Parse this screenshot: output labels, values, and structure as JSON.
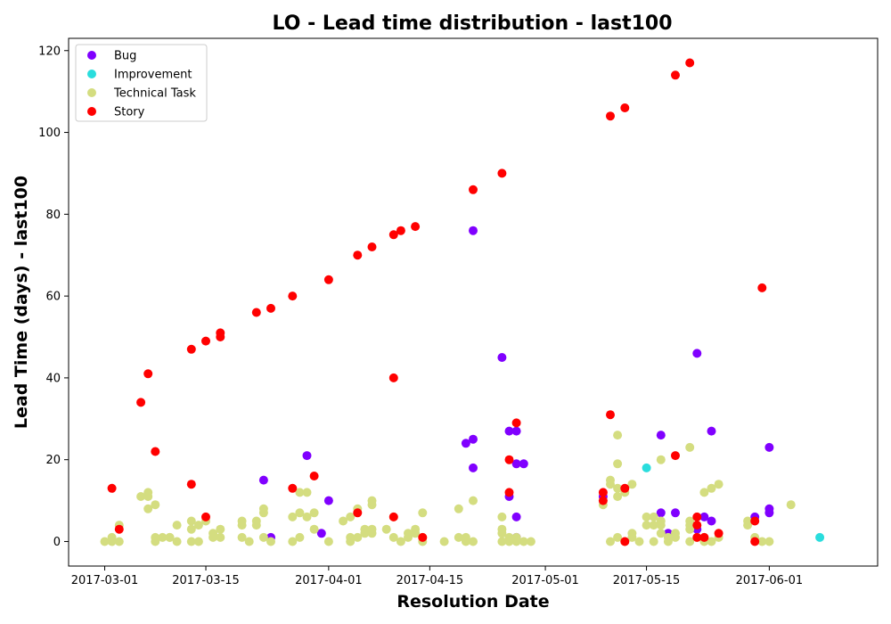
{
  "chart_data": {
    "type": "scatter",
    "title": "LO - Lead time distribution - last100",
    "xlabel": "Resolution Date",
    "ylabel": "Lead Time (days) - last100",
    "x_type": "date",
    "xlim": [
      "2017-02-24",
      "2017-06-16"
    ],
    "ylim": [
      -6,
      123
    ],
    "x_ticks": [
      "2017-03-01",
      "2017-03-15",
      "2017-04-01",
      "2017-04-15",
      "2017-05-01",
      "2017-05-15",
      "2017-06-01"
    ],
    "y_ticks": [
      0,
      20,
      40,
      60,
      80,
      100,
      120
    ],
    "grid": false,
    "legend_position": "top-left",
    "series": [
      {
        "name": "Bug",
        "color": "#8000ff",
        "points": [
          [
            "2017-03-23",
            15
          ],
          [
            "2017-03-24",
            1
          ],
          [
            "2017-03-29",
            21
          ],
          [
            "2017-03-31",
            2
          ],
          [
            "2017-04-01",
            10
          ],
          [
            "2017-04-20",
            24
          ],
          [
            "2017-04-21",
            76
          ],
          [
            "2017-04-21",
            25
          ],
          [
            "2017-04-21",
            18
          ],
          [
            "2017-04-25",
            45
          ],
          [
            "2017-04-26",
            11
          ],
          [
            "2017-04-26",
            27
          ],
          [
            "2017-04-27",
            27
          ],
          [
            "2017-04-27",
            19
          ],
          [
            "2017-04-27",
            6
          ],
          [
            "2017-04-27",
            1
          ],
          [
            "2017-04-28",
            19
          ],
          [
            "2017-05-09",
            11
          ],
          [
            "2017-05-17",
            26
          ],
          [
            "2017-05-17",
            7
          ],
          [
            "2017-05-18",
            2
          ],
          [
            "2017-05-19",
            7
          ],
          [
            "2017-05-22",
            46
          ],
          [
            "2017-05-22",
            3
          ],
          [
            "2017-05-23",
            6
          ],
          [
            "2017-05-24",
            27
          ],
          [
            "2017-05-24",
            5
          ],
          [
            "2017-05-30",
            6
          ],
          [
            "2017-06-01",
            23
          ],
          [
            "2017-06-01",
            8
          ],
          [
            "2017-06-01",
            7
          ]
        ]
      },
      {
        "name": "Improvement",
        "color": "#2adddd",
        "points": [
          [
            "2017-05-15",
            18
          ],
          [
            "2017-06-08",
            1
          ]
        ]
      },
      {
        "name": "Technical Task",
        "color": "#d4dd80",
        "points": [
          [
            "2017-03-01",
            0
          ],
          [
            "2017-03-02",
            1
          ],
          [
            "2017-03-02",
            0
          ],
          [
            "2017-03-03",
            0
          ],
          [
            "2017-03-03",
            4
          ],
          [
            "2017-03-06",
            11
          ],
          [
            "2017-03-07",
            12
          ],
          [
            "2017-03-07",
            11
          ],
          [
            "2017-03-07",
            8
          ],
          [
            "2017-03-08",
            9
          ],
          [
            "2017-03-08",
            1
          ],
          [
            "2017-03-08",
            0
          ],
          [
            "2017-03-09",
            1
          ],
          [
            "2017-03-10",
            1
          ],
          [
            "2017-03-10",
            1
          ],
          [
            "2017-03-11",
            4
          ],
          [
            "2017-03-11",
            0
          ],
          [
            "2017-03-13",
            5
          ],
          [
            "2017-03-13",
            3
          ],
          [
            "2017-03-13",
            0
          ],
          [
            "2017-03-14",
            4
          ],
          [
            "2017-03-14",
            0
          ],
          [
            "2017-03-15",
            5
          ],
          [
            "2017-03-16",
            2
          ],
          [
            "2017-03-16",
            1
          ],
          [
            "2017-03-17",
            3
          ],
          [
            "2017-03-17",
            1
          ],
          [
            "2017-03-20",
            5
          ],
          [
            "2017-03-20",
            4
          ],
          [
            "2017-03-20",
            1
          ],
          [
            "2017-03-21",
            0
          ],
          [
            "2017-03-22",
            5
          ],
          [
            "2017-03-22",
            4
          ],
          [
            "2017-03-23",
            1
          ],
          [
            "2017-03-23",
            8
          ],
          [
            "2017-03-23",
            7
          ],
          [
            "2017-03-24",
            0
          ],
          [
            "2017-03-27",
            6
          ],
          [
            "2017-03-27",
            0
          ],
          [
            "2017-03-28",
            12
          ],
          [
            "2017-03-28",
            7
          ],
          [
            "2017-03-28",
            1
          ],
          [
            "2017-03-29",
            12
          ],
          [
            "2017-03-29",
            6
          ],
          [
            "2017-03-30",
            7
          ],
          [
            "2017-03-30",
            3
          ],
          [
            "2017-04-01",
            0
          ],
          [
            "2017-04-03",
            5
          ],
          [
            "2017-04-04",
            6
          ],
          [
            "2017-04-04",
            1
          ],
          [
            "2017-04-04",
            0
          ],
          [
            "2017-04-05",
            8
          ],
          [
            "2017-04-05",
            1
          ],
          [
            "2017-04-06",
            3
          ],
          [
            "2017-04-06",
            2
          ],
          [
            "2017-04-07",
            10
          ],
          [
            "2017-04-07",
            9
          ],
          [
            "2017-04-07",
            3
          ],
          [
            "2017-04-07",
            2
          ],
          [
            "2017-04-09",
            3
          ],
          [
            "2017-04-10",
            6
          ],
          [
            "2017-04-10",
            1
          ],
          [
            "2017-04-11",
            0
          ],
          [
            "2017-04-12",
            2
          ],
          [
            "2017-04-12",
            1
          ],
          [
            "2017-04-13",
            3
          ],
          [
            "2017-04-13",
            2
          ],
          [
            "2017-04-14",
            7
          ],
          [
            "2017-04-14",
            1
          ],
          [
            "2017-04-14",
            0
          ],
          [
            "2017-04-17",
            0
          ],
          [
            "2017-04-19",
            8
          ],
          [
            "2017-04-19",
            1
          ],
          [
            "2017-04-20",
            1
          ],
          [
            "2017-04-20",
            0
          ],
          [
            "2017-04-21",
            10
          ],
          [
            "2017-04-21",
            0
          ],
          [
            "2017-04-25",
            6
          ],
          [
            "2017-04-25",
            3
          ],
          [
            "2017-04-25",
            2
          ],
          [
            "2017-04-25",
            0
          ],
          [
            "2017-04-26",
            1
          ],
          [
            "2017-04-26",
            0
          ],
          [
            "2017-04-27",
            1
          ],
          [
            "2017-04-27",
            0
          ],
          [
            "2017-04-28",
            0
          ],
          [
            "2017-04-29",
            0
          ],
          [
            "2017-05-09",
            9
          ],
          [
            "2017-05-10",
            15
          ],
          [
            "2017-05-10",
            14
          ],
          [
            "2017-05-10",
            0
          ],
          [
            "2017-05-11",
            26
          ],
          [
            "2017-05-11",
            19
          ],
          [
            "2017-05-11",
            13
          ],
          [
            "2017-05-11",
            11
          ],
          [
            "2017-05-11",
            1
          ],
          [
            "2017-05-12",
            12
          ],
          [
            "2017-05-12",
            0
          ],
          [
            "2017-05-13",
            14
          ],
          [
            "2017-05-13",
            2
          ],
          [
            "2017-05-13",
            1
          ],
          [
            "2017-05-14",
            0
          ],
          [
            "2017-05-15",
            6
          ],
          [
            "2017-05-15",
            4
          ],
          [
            "2017-05-16",
            6
          ],
          [
            "2017-05-16",
            4
          ],
          [
            "2017-05-16",
            0
          ],
          [
            "2017-05-17",
            20
          ],
          [
            "2017-05-17",
            5
          ],
          [
            "2017-05-17",
            4
          ],
          [
            "2017-05-17",
            2
          ],
          [
            "2017-05-18",
            1
          ],
          [
            "2017-05-18",
            0
          ],
          [
            "2017-05-19",
            2
          ],
          [
            "2017-05-19",
            1
          ],
          [
            "2017-05-21",
            23
          ],
          [
            "2017-05-21",
            5
          ],
          [
            "2017-05-21",
            4
          ],
          [
            "2017-05-21",
            3
          ],
          [
            "2017-05-21",
            0
          ],
          [
            "2017-05-22",
            1
          ],
          [
            "2017-05-23",
            12
          ],
          [
            "2017-05-23",
            1
          ],
          [
            "2017-05-23",
            0
          ],
          [
            "2017-05-24",
            13
          ],
          [
            "2017-05-24",
            0
          ],
          [
            "2017-05-25",
            14
          ],
          [
            "2017-05-25",
            1
          ],
          [
            "2017-05-29",
            5
          ],
          [
            "2017-05-29",
            4
          ],
          [
            "2017-05-30",
            1
          ],
          [
            "2017-05-31",
            0
          ],
          [
            "2017-06-01",
            0
          ],
          [
            "2017-06-04",
            9
          ]
        ]
      },
      {
        "name": "Story",
        "color": "#ff0000",
        "points": [
          [
            "2017-03-02",
            13
          ],
          [
            "2017-03-03",
            3
          ],
          [
            "2017-03-06",
            34
          ],
          [
            "2017-03-07",
            41
          ],
          [
            "2017-03-08",
            22
          ],
          [
            "2017-03-13",
            14
          ],
          [
            "2017-03-13",
            47
          ],
          [
            "2017-03-15",
            6
          ],
          [
            "2017-03-15",
            49
          ],
          [
            "2017-03-17",
            50
          ],
          [
            "2017-03-17",
            51
          ],
          [
            "2017-03-22",
            56
          ],
          [
            "2017-03-24",
            57
          ],
          [
            "2017-03-27",
            60
          ],
          [
            "2017-03-27",
            13
          ],
          [
            "2017-03-30",
            16
          ],
          [
            "2017-04-01",
            64
          ],
          [
            "2017-04-05",
            70
          ],
          [
            "2017-04-05",
            7
          ],
          [
            "2017-04-07",
            72
          ],
          [
            "2017-04-10",
            40
          ],
          [
            "2017-04-10",
            75
          ],
          [
            "2017-04-11",
            76
          ],
          [
            "2017-04-10",
            6
          ],
          [
            "2017-04-13",
            77
          ],
          [
            "2017-04-14",
            1
          ],
          [
            "2017-04-21",
            86
          ],
          [
            "2017-04-25",
            90
          ],
          [
            "2017-04-26",
            20
          ],
          [
            "2017-04-26",
            12
          ],
          [
            "2017-04-27",
            29
          ],
          [
            "2017-05-09",
            12
          ],
          [
            "2017-05-09",
            10
          ],
          [
            "2017-05-10",
            104
          ],
          [
            "2017-05-10",
            31
          ],
          [
            "2017-05-12",
            106
          ],
          [
            "2017-05-12",
            13
          ],
          [
            "2017-05-12",
            0
          ],
          [
            "2017-05-19",
            114
          ],
          [
            "2017-05-19",
            21
          ],
          [
            "2017-05-21",
            117
          ],
          [
            "2017-05-22",
            6
          ],
          [
            "2017-05-22",
            4
          ],
          [
            "2017-05-22",
            1
          ],
          [
            "2017-05-23",
            1
          ],
          [
            "2017-05-25",
            2
          ],
          [
            "2017-05-30",
            5
          ],
          [
            "2017-05-30",
            0
          ],
          [
            "2017-05-31",
            62
          ]
        ]
      }
    ]
  }
}
